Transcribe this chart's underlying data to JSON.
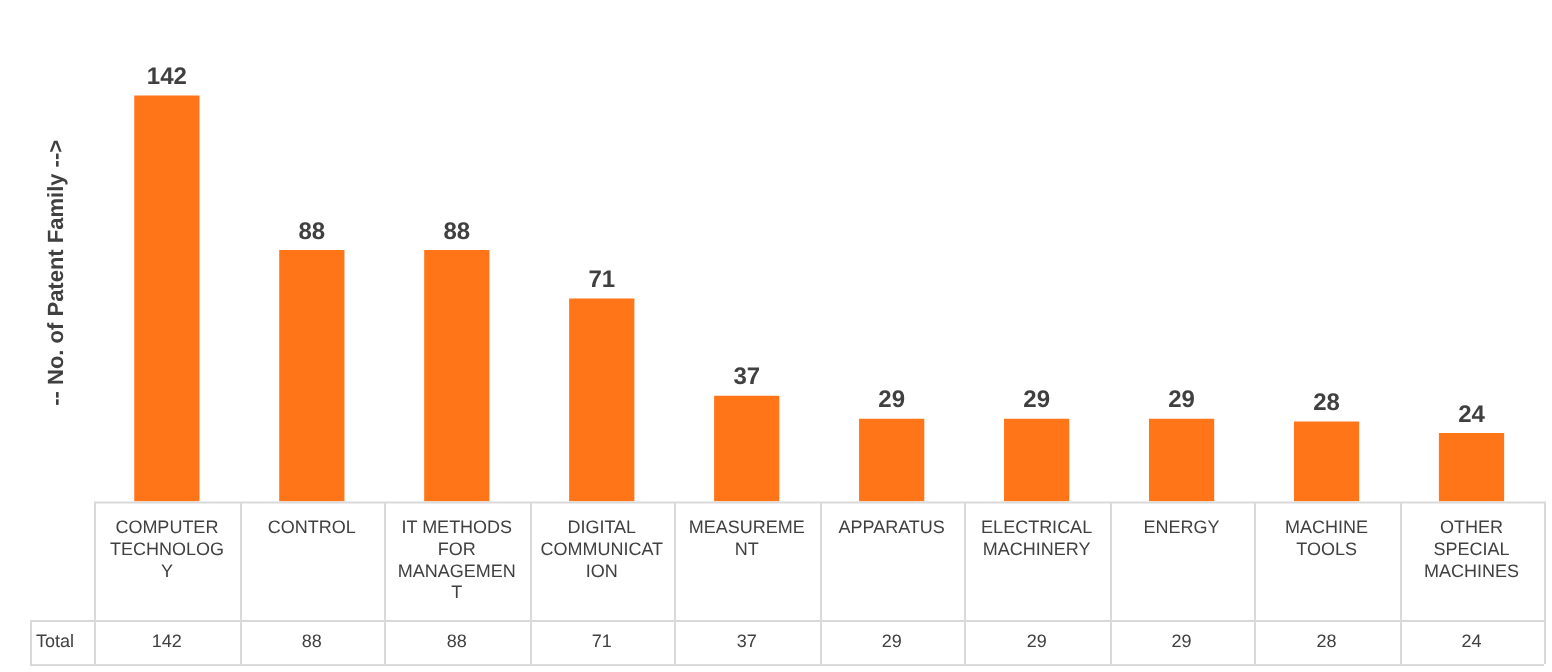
{
  "chart_data": {
    "type": "bar",
    "ylabel": "-- No. of Patent Family -->",
    "categories": [
      "COMPUTER TECHNOLOGY",
      "CONTROL",
      "IT METHODS FOR MANAGEMENT",
      "DIGITAL COMMUNICATION",
      "MEASUREMENT",
      "APPARATUS",
      "ELECTRICAL MACHINERY",
      "ENERGY",
      "MACHINE TOOLS",
      "OTHER SPECIAL MACHINES"
    ],
    "series": [
      {
        "name": "Total",
        "color": "#ff7518",
        "values": [
          142,
          88,
          88,
          71,
          37,
          29,
          29,
          29,
          28,
          24
        ],
        "value_labels": [
          "142",
          "88",
          "88",
          "71",
          "37",
          "29",
          "29",
          "29",
          "28",
          "24"
        ]
      }
    ],
    "totals": [
      "142",
      "88",
      "88",
      "71",
      "37",
      "29",
      "29",
      "29",
      "28",
      "24"
    ],
    "tick_labels": "x",
    "grid": false,
    "legend": false
  }
}
